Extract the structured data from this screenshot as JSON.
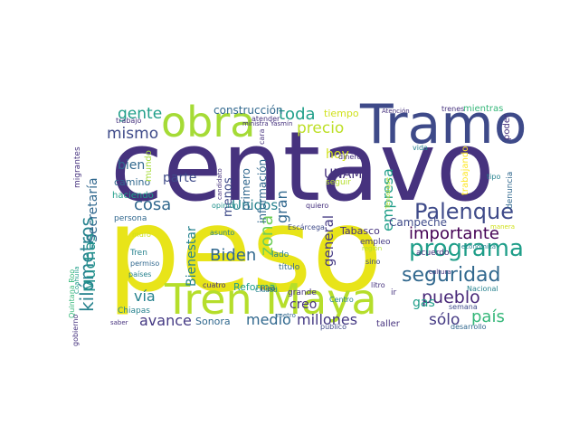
{
  "words": [
    {
      "text": "centavo",
      "color": "#46327e",
      "vertical": false
    },
    {
      "text": "peso",
      "color": "#e8e419",
      "vertical": false
    },
    {
      "text": "Tren Maya",
      "color": "#b5de2b",
      "vertical": false
    },
    {
      "text": "Tramo",
      "color": "#3e4a89",
      "vertical": false
    },
    {
      "text": "obra",
      "color": "#a5db36",
      "vertical": false
    },
    {
      "text": "Palenque",
      "color": "#3e4a89",
      "vertical": false
    },
    {
      "text": "programa",
      "color": "#1f9e89",
      "vertical": false
    },
    {
      "text": "seguridad",
      "color": "#31688e",
      "vertical": false
    },
    {
      "text": "importante",
      "color": "#440154",
      "vertical": false
    },
    {
      "text": "pueblo",
      "color": "#482878",
      "vertical": false
    },
    {
      "text": "país",
      "color": "#35b779",
      "vertical": false
    },
    {
      "text": "kilómetros",
      "color": "#26828e",
      "vertical": true
    },
    {
      "text": "gente",
      "color": "#1f9e89",
      "vertical": false
    },
    {
      "text": "mismo",
      "color": "#3e4a89",
      "vertical": false
    },
    {
      "text": "toda",
      "color": "#1f9e89",
      "vertical": false
    },
    {
      "text": "precio",
      "color": "#bddf26",
      "vertical": false
    },
    {
      "text": "construcción",
      "color": "#31688e",
      "vertical": false
    },
    {
      "text": "bien",
      "color": "#31688e",
      "vertical": false
    },
    {
      "text": "camino",
      "color": "#31688e",
      "vertical": false
    },
    {
      "text": "parte",
      "color": "#3e4a89",
      "vertical": false
    },
    {
      "text": "cosa",
      "color": "#31688e",
      "vertical": false
    },
    {
      "text": "Biden",
      "color": "#31688e",
      "vertical": false
    },
    {
      "text": "zona",
      "color": "#6ece58",
      "vertical": true
    },
    {
      "text": "gran",
      "color": "#31688e",
      "vertical": true
    },
    {
      "text": "general",
      "color": "#443983",
      "vertical": true
    },
    {
      "text": "hoy",
      "color": "#d0e11c",
      "vertical": false
    },
    {
      "text": "UNAM",
      "color": "#46327e",
      "vertical": false
    },
    {
      "text": "Unidos",
      "color": "#26828e",
      "vertical": false
    },
    {
      "text": "empresa",
      "color": "#1f9e89",
      "vertical": true
    },
    {
      "text": "Campeche",
      "color": "#3e4a89",
      "vertical": false
    },
    {
      "text": "vía",
      "color": "#26828e",
      "vertical": false
    },
    {
      "text": "avance",
      "color": "#443983",
      "vertical": false
    },
    {
      "text": "medio",
      "color": "#31688e",
      "vertical": false
    },
    {
      "text": "millones",
      "color": "#443983",
      "vertical": false
    },
    {
      "text": "sólo",
      "color": "#443983",
      "vertical": false
    },
    {
      "text": "gas",
      "color": "#1f9e89",
      "vertical": false
    },
    {
      "text": "creo",
      "color": "#46327e",
      "vertical": false
    },
    {
      "text": "Muchas",
      "color": "#21918c",
      "vertical": true
    },
    {
      "text": "Secretaría",
      "color": "#31688e",
      "vertical": true
    },
    {
      "text": "Bienestar",
      "color": "#26828e",
      "vertical": true
    },
    {
      "text": "Tabasco",
      "color": "#46327e",
      "vertical": false
    },
    {
      "text": "Sonora",
      "color": "#31688e",
      "vertical": false
    },
    {
      "text": "Reforma",
      "color": "#1f9e89",
      "vertical": false
    },
    {
      "text": "taller",
      "color": "#46327e",
      "vertical": false
    },
    {
      "text": "menos",
      "color": "#3e4a89",
      "vertical": true
    },
    {
      "text": "información",
      "color": "#31688e",
      "vertical": true
    },
    {
      "text": "primero",
      "color": "#31688e",
      "vertical": true
    },
    {
      "text": "tiempo",
      "color": "#d0e11c",
      "vertical": false
    },
    {
      "text": "trenes",
      "color": "#46327e",
      "vertical": false
    },
    {
      "text": "mientras",
      "color": "#35b779",
      "vertical": false
    },
    {
      "text": "poder",
      "color": "#46327e",
      "vertical": true
    },
    {
      "text": "trabajando",
      "color": "#fde725",
      "vertical": true
    },
    {
      "text": "tipo",
      "color": "#26828e",
      "vertical": false
    },
    {
      "text": "denuncia",
      "color": "#31688e",
      "vertical": true
    },
    {
      "text": "vida",
      "color": "#26828e",
      "vertical": false
    },
    {
      "text": "dinero",
      "color": "#46327e",
      "vertical": false
    },
    {
      "text": "seguir",
      "color": "#b5de2b",
      "vertical": false
    },
    {
      "text": "quiero",
      "color": "#46327e",
      "vertical": false
    },
    {
      "text": "Escárcega",
      "color": "#3e4a89",
      "vertical": false
    },
    {
      "text": "lado",
      "color": "#26828e",
      "vertical": false
    },
    {
      "text": "título",
      "color": "#31688e",
      "vertical": false
    },
    {
      "text": "grande",
      "color": "#46327e",
      "vertical": false
    },
    {
      "text": "empleo",
      "color": "#443983",
      "vertical": false
    },
    {
      "text": "acuerdo",
      "color": "#46327e",
      "vertical": false
    },
    {
      "text": "semana",
      "color": "#3e4a89",
      "vertical": false
    },
    {
      "text": "región",
      "color": "#b5de2b",
      "vertical": false
    },
    {
      "text": "Centro",
      "color": "#26828e",
      "vertical": false
    },
    {
      "text": "público",
      "color": "#3e4a89",
      "vertical": false
    },
    {
      "text": "metro",
      "color": "#31688e",
      "vertical": false
    },
    {
      "text": "litro",
      "color": "#46327e",
      "vertical": false
    },
    {
      "text": "sino",
      "color": "#3e4a89",
      "vertical": false
    },
    {
      "text": "ir",
      "color": "#46327e",
      "vertical": false
    },
    {
      "text": "cultura",
      "color": "#46327e",
      "vertical": false
    },
    {
      "text": "desarrollo",
      "color": "#31688e",
      "vertical": false
    },
    {
      "text": "económica",
      "color": "#26828e",
      "vertical": false
    },
    {
      "text": "Nacional",
      "color": "#26828e",
      "vertical": false
    },
    {
      "text": "manera",
      "color": "#d0e11c",
      "vertical": false
    },
    {
      "text": "Tenosique",
      "color": "#b5de2b",
      "vertical": true
    },
    {
      "text": "Atención",
      "color": "#46327e",
      "vertical": false
    },
    {
      "text": "candidato",
      "color": "#46327e",
      "vertical": true
    },
    {
      "text": "atender",
      "color": "#46327e",
      "vertical": false
    },
    {
      "text": "ministra Yasmín",
      "color": "#46327e",
      "vertical": false
    },
    {
      "text": "cara",
      "color": "#46327e",
      "vertical": true
    },
    {
      "text": "opinión",
      "color": "#21918c",
      "vertical": false
    },
    {
      "text": "haciendo",
      "color": "#1f9e89",
      "vertical": false
    },
    {
      "text": "persona",
      "color": "#31688e",
      "vertical": false
    },
    {
      "text": "mundo",
      "color": "#a5db36",
      "vertical": true
    },
    {
      "text": "trabajo",
      "color": "#46327e",
      "vertical": false
    },
    {
      "text": "migrantes",
      "color": "#46327e",
      "vertical": true
    },
    {
      "text": "Quintana Roo",
      "color": "#35b779",
      "vertical": true
    },
    {
      "text": "Coahuila",
      "color": "#1f9e89",
      "vertical": true
    },
    {
      "text": "muro",
      "color": "#d0e11c",
      "vertical": false
    },
    {
      "text": "Tren",
      "color": "#26828e",
      "vertical": false
    },
    {
      "text": "permiso",
      "color": "#31688e",
      "vertical": false
    },
    {
      "text": "países",
      "color": "#26828e",
      "vertical": false
    },
    {
      "text": "Chiapas",
      "color": "#26828e",
      "vertical": false
    },
    {
      "text": "gobierno",
      "color": "#46327e",
      "vertical": true
    },
    {
      "text": "saber",
      "color": "#46327e",
      "vertical": false
    },
    {
      "text": "cuatro",
      "color": "#46327e",
      "vertical": false
    },
    {
      "text": "asunto",
      "color": "#26828e",
      "vertical": false
    },
    {
      "text": "hizo",
      "color": "#46327e",
      "vertical": false
    },
    {
      "text": "Ciudad",
      "color": "#26828e",
      "vertical": false
    }
  ]
}
